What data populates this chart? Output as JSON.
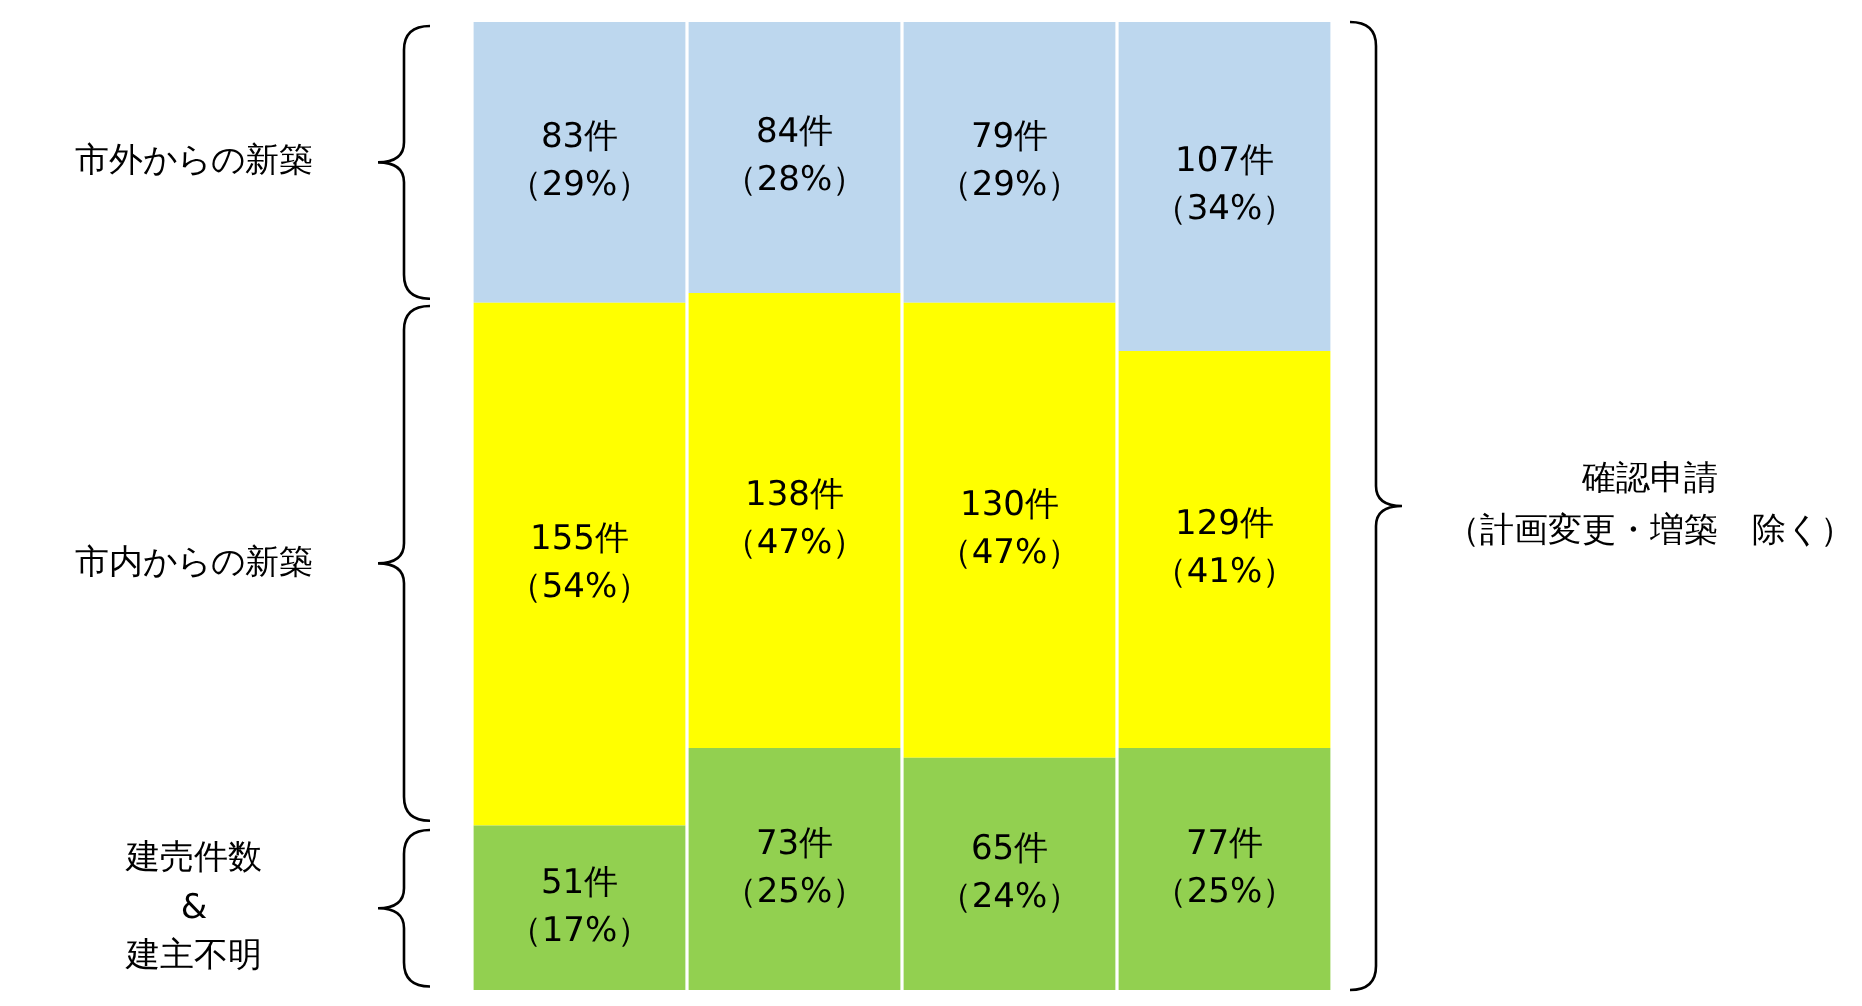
{
  "chart_data": {
    "type": "bar",
    "stacked": true,
    "categories": [
      null,
      null,
      null,
      null
    ],
    "series": [
      {
        "color": "#92d050",
        "values": [
          17,
          25,
          24,
          25
        ],
        "value_labels": [
          "51件（17%）",
          "73件（25%）",
          "65件（24%）",
          "77件（25%）"
        ]
      },
      {
        "color": "#ffff00",
        "values": [
          54,
          47,
          47,
          41
        ],
        "value_labels": [
          "155件（54%）",
          "138件（47%）",
          "130件（47%）",
          "129件（41%）"
        ]
      },
      {
        "color": "#bdd7ee",
        "values": [
          29,
          28,
          29,
          34
        ],
        "value_labels": [
          "83件（29%）",
          "84件（28%）",
          "79件（29%）",
          "107件（34%）"
        ]
      }
    ],
    "ylim": [
      0,
      100
    ],
    "tick_labels": false,
    "legend": false,
    "annotations": [
      "建売件数\n&\n建主不明",
      "市内からの新築",
      "市外からの新築",
      "確認申請",
      "（計画変更・増築　除く）"
    ]
  }
}
